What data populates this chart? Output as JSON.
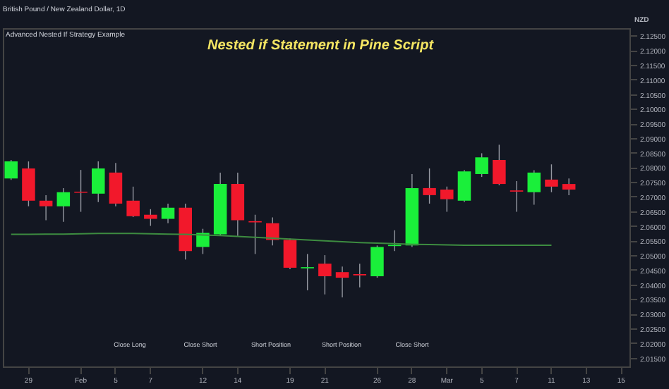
{
  "chart_data": {
    "type": "candlestick",
    "title": "Nested if Statement in Pine Script",
    "subtitle": "British Pound / New Zealand Dollar, 1D",
    "ylabel": "NZD",
    "categories": [
      null,
      "29",
      null,
      null,
      "Feb",
      null,
      "5",
      null,
      "7",
      null,
      null,
      "12",
      null,
      "14",
      null,
      null,
      "19",
      null,
      "21",
      null,
      null,
      "26",
      null,
      "28",
      null,
      "Mar",
      null,
      "5",
      null,
      "7",
      null,
      "11",
      null,
      "13",
      null,
      "15"
    ],
    "ohlc": [
      [
        2.0762,
        2.0825,
        2.0757,
        2.082
      ],
      [
        2.0796,
        2.082,
        2.0667,
        2.0686
      ],
      [
        2.0686,
        2.0705,
        2.0619,
        2.0667
      ],
      [
        2.0667,
        2.0729,
        2.0614,
        2.0715
      ],
      [
        2.0717,
        2.0791,
        2.0648,
        2.0713
      ],
      [
        2.071,
        2.082,
        2.0681,
        2.0796
      ],
      [
        2.0782,
        2.0815,
        2.0667,
        2.0676
      ],
      [
        2.0686,
        2.0734,
        2.063,
        2.0633
      ],
      [
        2.0638,
        2.0657,
        2.06,
        2.0624
      ],
      [
        2.0624,
        2.0676,
        2.0609,
        2.0662
      ],
      [
        2.0662,
        2.0676,
        2.0485,
        2.0514
      ],
      [
        2.0528,
        2.059,
        2.0504,
        2.0576
      ],
      [
        2.0571,
        2.0782,
        2.0566,
        2.0743
      ],
      [
        2.0743,
        2.0782,
        2.0566,
        2.0619
      ],
      [
        2.0616,
        2.0638,
        2.0504,
        2.0612
      ],
      [
        2.0609,
        2.0629,
        2.0533,
        2.0552
      ],
      [
        2.0552,
        2.0557,
        2.0452,
        2.0457
      ],
      [
        2.0455,
        2.0504,
        2.038,
        2.0459
      ],
      [
        2.0471,
        2.05,
        2.0366,
        2.0428
      ],
      [
        2.0442,
        2.0461,
        2.0356,
        2.0423
      ],
      [
        2.0435,
        2.0471,
        2.039,
        2.0431
      ],
      [
        2.0428,
        2.0533,
        2.0423,
        2.0528
      ],
      [
        2.0531,
        2.0585,
        2.0514,
        2.0535
      ],
      [
        2.0533,
        2.0777,
        2.0528,
        2.0729
      ],
      [
        2.0729,
        2.0796,
        2.0676,
        2.0705
      ],
      [
        2.0724,
        2.0734,
        2.0648,
        2.0691
      ],
      [
        2.0686,
        2.0791,
        2.0681,
        2.0786
      ],
      [
        2.0777,
        2.0848,
        2.0767,
        2.0834
      ],
      [
        2.0825,
        2.0877,
        2.0739,
        2.0743
      ],
      [
        2.0721,
        2.0753,
        2.0648,
        2.0717
      ],
      [
        2.0715,
        2.079,
        2.0672,
        2.0782
      ],
      [
        2.0758,
        2.081,
        2.0715,
        2.0734
      ],
      [
        2.0743,
        2.0762,
        2.0705,
        2.0724
      ],
      null,
      null,
      null
    ],
    "colors": [
      "#1aef3a",
      "#f2182b",
      "#f2182b",
      "#1aef3a",
      "#f2182b",
      "#1aef3a",
      "#f2182b",
      "#f2182b",
      "#f2182b",
      "#1aef3a",
      "#f2182b",
      "#1aef3a",
      "#1aef3a",
      "#f2182b",
      "#f2182b",
      "#f2182b",
      "#f2182b",
      "#1aef3a",
      "#f2182b",
      "#f2182b",
      "#f2182b",
      "#1aef3a",
      "#1aef3a",
      "#1aef3a",
      "#f2182b",
      "#f2182b",
      "#1aef3a",
      "#1aef3a",
      "#f2182b",
      "#f2182b",
      "#1aef3a",
      "#f2182b",
      "#f2182b",
      null,
      null,
      null
    ],
    "series": [
      {
        "type": "line",
        "color": "#3d8c40",
        "values": [
          2.0571,
          2.0571,
          2.0572,
          2.0572,
          2.0573,
          2.0574,
          2.0574,
          2.0574,
          2.0573,
          2.0572,
          2.0571,
          2.0569,
          2.0567,
          2.0564,
          2.0561,
          2.0558,
          2.0555,
          2.0552,
          2.0549,
          2.0546,
          2.0543,
          2.0541,
          2.0539,
          2.0537,
          2.0536,
          2.0535,
          2.0534,
          2.0534,
          2.0534,
          2.0534,
          2.0534,
          2.0534,
          null,
          null,
          null,
          null
        ]
      }
    ],
    "ylim": [
      2.012,
      2.1275
    ],
    "yticks": [
      {
        "value": 2.015,
        "label": "2.01500"
      },
      {
        "value": 2.02,
        "label": "2.02000"
      },
      {
        "value": 2.025,
        "label": "2.02500"
      },
      {
        "value": 2.03,
        "label": "2.03000"
      },
      {
        "value": 2.035,
        "label": "2.03500"
      },
      {
        "value": 2.04,
        "label": "2.04000"
      },
      {
        "value": 2.045,
        "label": "2.04500"
      },
      {
        "value": 2.05,
        "label": "2.05000"
      },
      {
        "value": 2.055,
        "label": "2.05500"
      },
      {
        "value": 2.06,
        "label": "2.06000"
      },
      {
        "value": 2.065,
        "label": "2.06500"
      },
      {
        "value": 2.07,
        "label": "2.07000"
      },
      {
        "value": 2.075,
        "label": "2.07500"
      },
      {
        "value": 2.08,
        "label": "2.08000"
      },
      {
        "value": 2.085,
        "label": "2.08500"
      },
      {
        "value": 2.09,
        "label": "2.09000"
      },
      {
        "value": 2.095,
        "label": "2.09500"
      },
      {
        "value": 2.1,
        "label": "2.10000"
      },
      {
        "value": 2.105,
        "label": "2.10500"
      },
      {
        "value": 2.11,
        "label": "2.11000"
      },
      {
        "value": 2.115,
        "label": "2.11500"
      },
      {
        "value": 2.12,
        "label": "2.12000"
      },
      {
        "value": 2.125,
        "label": "2.12500"
      }
    ],
    "grid": false,
    "annotations": [
      "Advanced Nested If Strategy Example",
      "Close Long",
      "Close Short",
      "Short Position",
      "Short Position",
      "Close Short"
    ]
  }
}
